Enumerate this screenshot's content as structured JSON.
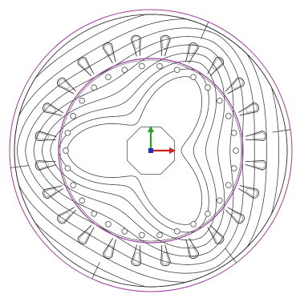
{
  "colors": {
    "background": "#ffffff",
    "stator_outline": "#9b3f9b",
    "field_lines": "#2b2b2b",
    "rotor_slots": "#5a5a5a",
    "stator_slots": "#333333",
    "axis_x": "#d21f1f",
    "axis_y": "#22a322",
    "axis_origin": "#1a2bbd"
  },
  "model": {
    "stator_slot_count": 24,
    "rotor_slot_count": 30,
    "pole_count": 6
  },
  "icons": {
    "axis_triad": "coordinate-axes-icon"
  }
}
